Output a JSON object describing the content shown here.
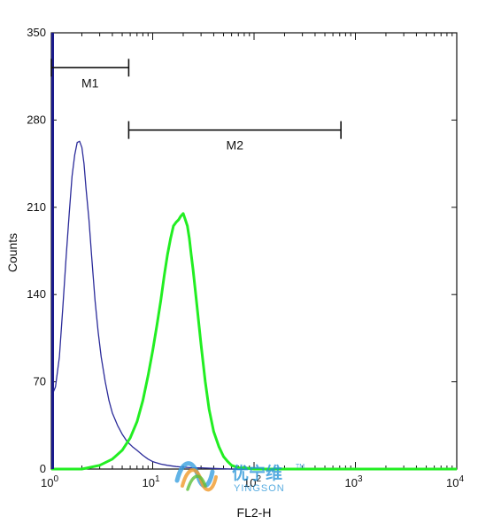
{
  "chart_data": {
    "type": "line",
    "title": "",
    "xlabel": "FL2-H",
    "ylabel": "Counts",
    "x_scale": "log",
    "xlim": [
      1,
      10000
    ],
    "ylim": [
      0,
      350
    ],
    "x_ticks": [
      {
        "value": 1,
        "base": "10",
        "exp": "0"
      },
      {
        "value": 10,
        "base": "10",
        "exp": "1"
      },
      {
        "value": 100,
        "base": "10",
        "exp": "2"
      },
      {
        "value": 1000,
        "base": "10",
        "exp": "3"
      },
      {
        "value": 10000,
        "base": "10",
        "exp": "4"
      }
    ],
    "y_ticks": [
      0,
      70,
      140,
      210,
      280,
      350
    ],
    "series": [
      {
        "color": "#2b2b9a",
        "x": [
          1.0,
          1.05,
          1.1,
          1.2,
          1.3,
          1.4,
          1.5,
          1.6,
          1.7,
          1.8,
          1.9,
          2.0,
          2.1,
          2.2,
          2.35,
          2.5,
          2.7,
          2.9,
          3.1,
          3.4,
          3.7,
          4.0,
          4.5,
          5.0,
          5.6,
          6.3,
          7.0,
          8.0,
          9.0,
          10.0,
          12.0,
          14.0,
          17.0,
          20.0,
          25.0,
          30.0,
          40.0,
          60.0,
          100.0,
          1000.0,
          10000.0
        ],
        "y": [
          60,
          62,
          66,
          90,
          130,
          170,
          205,
          235,
          252,
          262,
          263,
          258,
          245,
          225,
          200,
          170,
          135,
          110,
          90,
          70,
          55,
          45,
          35,
          28,
          22,
          18,
          15,
          11,
          8,
          6,
          4,
          3,
          2,
          1.5,
          1,
          1,
          0.5,
          0,
          0,
          0,
          0
        ]
      },
      {
        "color": "#22ee22",
        "x": [
          1.0,
          2.0,
          3.0,
          4.0,
          5.0,
          6.0,
          7.0,
          8.0,
          9.0,
          10.0,
          11.0,
          12.0,
          13.0,
          14.0,
          15.0,
          16.0,
          17.0,
          18.0,
          19.0,
          20.0,
          21.0,
          22.0,
          23.0,
          24.0,
          25.0,
          27.0,
          30.0,
          33.0,
          36.0,
          40.0,
          45.0,
          50.0,
          55.0,
          60.0,
          70.0,
          80.0,
          100.0,
          150.0,
          1000.0,
          10000.0
        ],
        "y": [
          0,
          0,
          3,
          8,
          15,
          25,
          38,
          55,
          75,
          95,
          115,
          135,
          155,
          172,
          185,
          195,
          198,
          200,
          203,
          205,
          200,
          195,
          185,
          172,
          160,
          135,
          100,
          70,
          48,
          30,
          18,
          10,
          6,
          3,
          1,
          1,
          0,
          0,
          0,
          0
        ]
      }
    ],
    "markers": [
      {
        "label": "M1",
        "from": 1.0,
        "to": 5.8,
        "y": 322
      },
      {
        "label": "M2",
        "from": 5.8,
        "to": 720,
        "y": 272
      }
    ]
  },
  "watermark": {
    "text_cn": "优宁维",
    "text_en": "YINGSON",
    "tm": "TM"
  }
}
